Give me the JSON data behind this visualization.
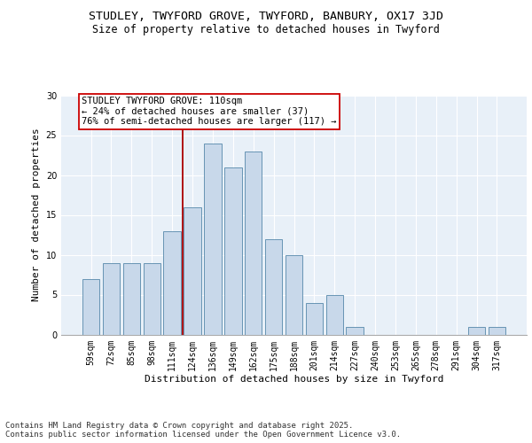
{
  "title_line1": "STUDLEY, TWYFORD GROVE, TWYFORD, BANBURY, OX17 3JD",
  "title_line2": "Size of property relative to detached houses in Twyford",
  "xlabel": "Distribution of detached houses by size in Twyford",
  "ylabel": "Number of detached properties",
  "categories": [
    "59sqm",
    "72sqm",
    "85sqm",
    "98sqm",
    "111sqm",
    "124sqm",
    "136sqm",
    "149sqm",
    "162sqm",
    "175sqm",
    "188sqm",
    "201sqm",
    "214sqm",
    "227sqm",
    "240sqm",
    "253sqm",
    "265sqm",
    "278sqm",
    "291sqm",
    "304sqm",
    "317sqm"
  ],
  "values": [
    7,
    9,
    9,
    9,
    13,
    16,
    24,
    21,
    23,
    12,
    10,
    4,
    5,
    1,
    0,
    0,
    0,
    0,
    0,
    1,
    1
  ],
  "bar_color": "#c8d8ea",
  "bar_edge_color": "#5588aa",
  "line_color": "#aa0000",
  "line_x_index": 4,
  "annotation_text": "STUDLEY TWYFORD GROVE: 110sqm\n← 24% of detached houses are smaller (37)\n76% of semi-detached houses are larger (117) →",
  "annotation_box_color": "#ffffff",
  "annotation_box_edge": "#cc0000",
  "ylim": [
    0,
    30
  ],
  "yticks": [
    0,
    5,
    10,
    15,
    20,
    25,
    30
  ],
  "background_color": "#e8f0f8",
  "grid_color": "#ffffff",
  "footer_text": "Contains HM Land Registry data © Crown copyright and database right 2025.\nContains public sector information licensed under the Open Government Licence v3.0.",
  "title_fontsize": 9.5,
  "subtitle_fontsize": 8.5,
  "xlabel_fontsize": 8,
  "ylabel_fontsize": 8,
  "tick_fontsize": 7,
  "annotation_fontsize": 7.5,
  "footer_fontsize": 6.5
}
